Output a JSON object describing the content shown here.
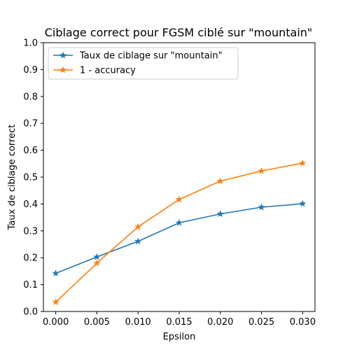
{
  "chart_data": {
    "type": "line",
    "title": "Ciblage correct pour FGSM ciblé sur \"mountain\"",
    "xlabel": "Epsilon",
    "ylabel": "Taux de ciblage correct",
    "xlim": [
      -0.0015,
      0.0315
    ],
    "ylim": [
      0.0,
      1.0
    ],
    "xticks": [
      "0.000",
      "0.005",
      "0.010",
      "0.015",
      "0.020",
      "0.025",
      "0.030"
    ],
    "yticks": [
      "0.0",
      "0.1",
      "0.2",
      "0.3",
      "0.4",
      "0.5",
      "0.6",
      "0.7",
      "0.8",
      "0.9",
      "1.0"
    ],
    "x": [
      0.0,
      0.005,
      0.01,
      0.015,
      0.02,
      0.025,
      0.03
    ],
    "series": [
      {
        "name": "Taux de ciblage sur \"mountain\"",
        "color": "#1f77b4",
        "marker": "star",
        "values": [
          0.142,
          0.203,
          0.261,
          0.33,
          0.363,
          0.388,
          0.401
        ]
      },
      {
        "name": "1 - accuracy",
        "color": "#ff7f0e",
        "marker": "star",
        "values": [
          0.035,
          0.18,
          0.315,
          0.417,
          0.485,
          0.523,
          0.552
        ]
      }
    ],
    "grid": false,
    "legend_position": "top-left"
  }
}
